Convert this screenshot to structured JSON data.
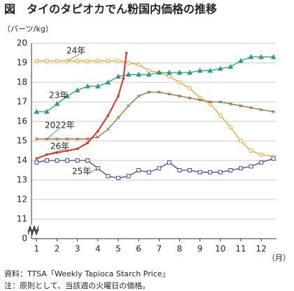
{
  "chart_data": {
    "type": "line",
    "title": "図　タイのタピオカでん粉国内価格の推移",
    "y_label": "（バーツ/kg）",
    "x_label": "（月）",
    "notes": [
      "資料：TTSA「Weekly Tapioca Starch Price」",
      "注：原則として、当該週の火曜日の価格。"
    ],
    "xlim": [
      0.75,
      12.75
    ],
    "xticks": [
      1,
      2,
      3,
      4,
      5,
      6,
      7,
      8,
      9,
      10,
      11,
      12
    ],
    "ylim": [
      0,
      20
    ],
    "yticks": [
      0,
      11,
      12,
      13,
      14,
      15,
      16,
      17,
      18,
      19,
      20
    ],
    "axis_break": [
      0,
      11
    ],
    "grid": true,
    "series": [
      {
        "name": "24年",
        "color": "#f0a020",
        "marker": "circle",
        "x": [
          1,
          1.5,
          2,
          2.5,
          3,
          3.5,
          4,
          4.5,
          5,
          5.5,
          6,
          6.5,
          7,
          7.5,
          8,
          8.5,
          9,
          9.5,
          10,
          10.5,
          11,
          11.5,
          12,
          12.6
        ],
        "values": [
          19.1,
          19.1,
          19.1,
          19.1,
          19.1,
          19.1,
          19.1,
          19.1,
          19.1,
          19.0,
          18.9,
          18.6,
          18.5,
          18.3,
          18.0,
          17.7,
          17.2,
          16.9,
          16.3,
          15.7,
          15.0,
          14.5,
          14.3,
          14.2
        ]
      },
      {
        "name": "23年",
        "color": "#2a9a8e",
        "marker": "triangle",
        "x": [
          1,
          1.5,
          2,
          2.5,
          3,
          3.5,
          4,
          4.5,
          5,
          5.5,
          6,
          6.5,
          7,
          7.5,
          8,
          8.5,
          9,
          9.5,
          10,
          10.5,
          11,
          11.5,
          12,
          12.6
        ],
        "values": [
          16.5,
          16.5,
          16.9,
          17.3,
          17.6,
          17.8,
          17.8,
          18.0,
          18.3,
          18.4,
          18.4,
          18.4,
          18.5,
          18.5,
          18.5,
          18.5,
          18.6,
          18.6,
          18.7,
          18.8,
          19.1,
          19.3,
          19.3,
          19.3
        ]
      },
      {
        "name": "2022年",
        "color": "#9a6a3a",
        "marker": "cross",
        "x": [
          1,
          1.5,
          2,
          2.5,
          3,
          3.5,
          4,
          4.5,
          5,
          5.5,
          6,
          6.5,
          7,
          7.5,
          8,
          8.5,
          9,
          9.5,
          10,
          10.5,
          11,
          11.5,
          12,
          12.6
        ],
        "values": [
          15.1,
          15.1,
          15.1,
          15.1,
          15.1,
          15.1,
          15.2,
          15.6,
          16.2,
          16.8,
          17.3,
          17.5,
          17.5,
          17.4,
          17.3,
          17.2,
          17.1,
          17.0,
          17.0,
          16.9,
          16.8,
          16.7,
          16.6,
          16.5
        ]
      },
      {
        "name": "26年",
        "color": "#e03020",
        "marker": "dot",
        "x": [
          1,
          1.5,
          2,
          2.5,
          3,
          3.5,
          4,
          4.5,
          5,
          5.25,
          5.4
        ],
        "values": [
          14.1,
          14.3,
          14.4,
          14.5,
          14.6,
          14.9,
          15.5,
          16.3,
          17.3,
          18.2,
          19.5
        ]
      },
      {
        "name": "25年",
        "color": "#3a4aa0",
        "marker": "square",
        "x": [
          1,
          1.5,
          2,
          2.5,
          3,
          3.5,
          4,
          4.5,
          5,
          5.5,
          6,
          6.5,
          7,
          7.5,
          8,
          8.5,
          9,
          9.5,
          10,
          10.5,
          11,
          11.5,
          12,
          12.6
        ],
        "values": [
          13.9,
          14.0,
          14.0,
          14.0,
          14.0,
          14.0,
          13.6,
          13.2,
          13.1,
          13.2,
          13.5,
          13.4,
          13.6,
          13.9,
          13.5,
          13.5,
          13.4,
          13.4,
          13.4,
          13.5,
          13.6,
          13.7,
          13.9,
          14.1
        ]
      }
    ]
  }
}
